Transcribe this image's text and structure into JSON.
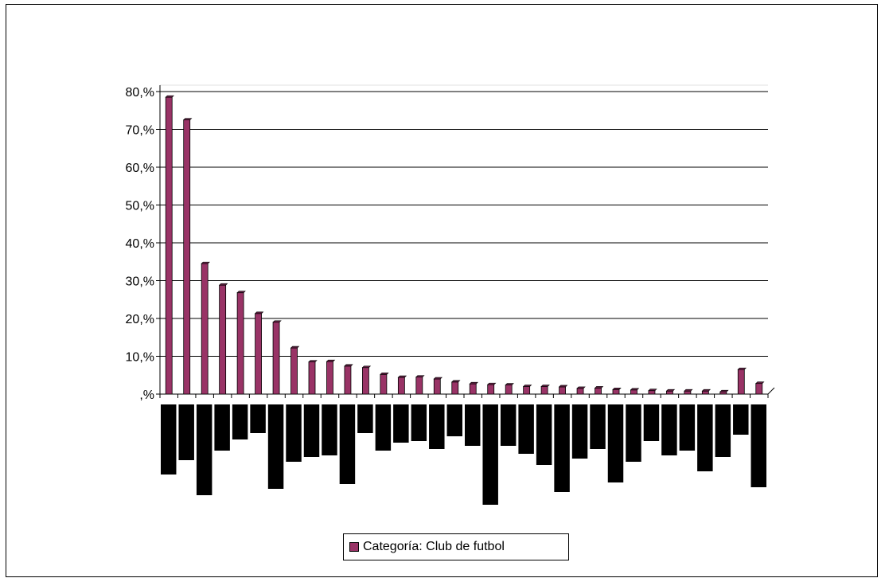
{
  "chart_data": {
    "type": "bar",
    "series": [
      {
        "name": "Categoría: Club de futbol",
        "values": [
          78.5,
          72.5,
          34.5,
          28.8,
          26.8,
          21.3,
          19.0,
          12.2,
          8.5,
          8.6,
          7.4,
          7.0,
          5.2,
          4.4,
          4.5,
          4.0,
          3.2,
          2.7,
          2.5,
          2.4,
          2.0,
          2.0,
          1.9,
          1.5,
          1.6,
          1.2,
          1.1,
          0.9,
          0.8,
          0.8,
          0.8,
          0.6,
          6.5,
          2.8
        ]
      }
    ],
    "tick_labels": [
      ",%",
      "10,%",
      "20,%",
      "30,%",
      "40,%",
      "50,%",
      "60,%",
      "70,%",
      "80,%"
    ],
    "ylim": [
      0,
      80
    ],
    "grid": true,
    "legend_position": "bottom",
    "colors": {
      "bar_face": "#993366",
      "bar_top": "#5e1f40",
      "category_block": "#000000",
      "gridline": "#000000"
    }
  }
}
